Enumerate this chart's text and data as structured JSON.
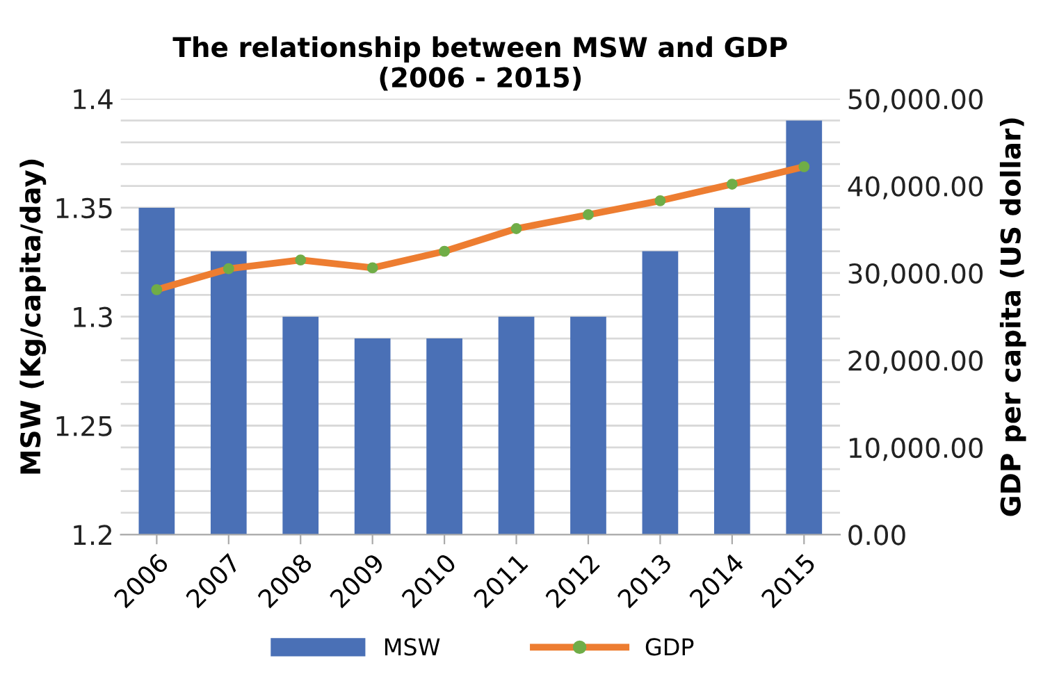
{
  "chart_data": {
    "type": "bar",
    "title": "The relationship between MSW and GDP\n(2006 - 2015)",
    "xlabel": null,
    "ylabel": "MSW (Kg/capita/day)",
    "y2label": "GDP per capita (US dollar)",
    "categories": [
      "2006",
      "2007",
      "2008",
      "2009",
      "2010",
      "2011",
      "2012",
      "2013",
      "2014",
      "2015"
    ],
    "series": [
      {
        "name": "MSW",
        "color": "#4a70b6",
        "values": [
          1.35,
          1.33,
          1.3,
          1.29,
          1.29,
          1.3,
          1.3,
          1.33,
          1.35,
          1.39
        ]
      },
      {
        "name": "GDP",
        "type": "line",
        "axis": "y2",
        "color": "#ed7d31",
        "colors": [
          "#70ad47",
          "#70ad47",
          "#70ad47",
          "#70ad47",
          "#70ad47",
          "#70ad47",
          "#70ad47",
          "#70ad47",
          "#70ad47",
          "#70ad47"
        ],
        "marker": "circle",
        "values": [
          28100,
          30500,
          31500,
          30600,
          32500,
          35100,
          36700,
          38300,
          40200,
          42200
        ]
      }
    ],
    "ylim": [
      1.2,
      1.4
    ],
    "yticks": [
      1.2,
      {
        "value": 1.21,
        "label": null
      },
      {
        "value": 1.22,
        "label": null
      },
      {
        "value": 1.23,
        "label": null
      },
      {
        "value": 1.24,
        "label": null
      },
      1.25,
      {
        "value": 1.26,
        "label": null
      },
      {
        "value": 1.27,
        "label": null
      },
      {
        "value": 1.28,
        "label": null
      },
      {
        "value": 1.29,
        "label": null
      },
      1.3,
      {
        "value": 1.31,
        "label": null
      },
      {
        "value": 1.32,
        "label": null
      },
      {
        "value": 1.33,
        "label": null
      },
      {
        "value": 1.34,
        "label": null
      },
      1.35,
      {
        "value": 1.36,
        "label": null
      },
      {
        "value": 1.37,
        "label": null
      },
      {
        "value": 1.38,
        "label": null
      },
      {
        "value": 1.39,
        "label": null
      },
      1.4
    ],
    "y2lim": [
      0,
      50000
    ],
    "y2ticks": [
      {
        "value": 0,
        "label": "0.00"
      },
      {
        "value": 10000,
        "label": "10,000.00"
      },
      {
        "value": 20000,
        "label": "20,000.00"
      },
      {
        "value": 30000,
        "label": "30,000.00"
      },
      {
        "value": 40000,
        "label": "40,000.00"
      },
      {
        "value": 50000,
        "label": "50,000.00"
      }
    ],
    "grid": "y",
    "legend": "bottom"
  }
}
